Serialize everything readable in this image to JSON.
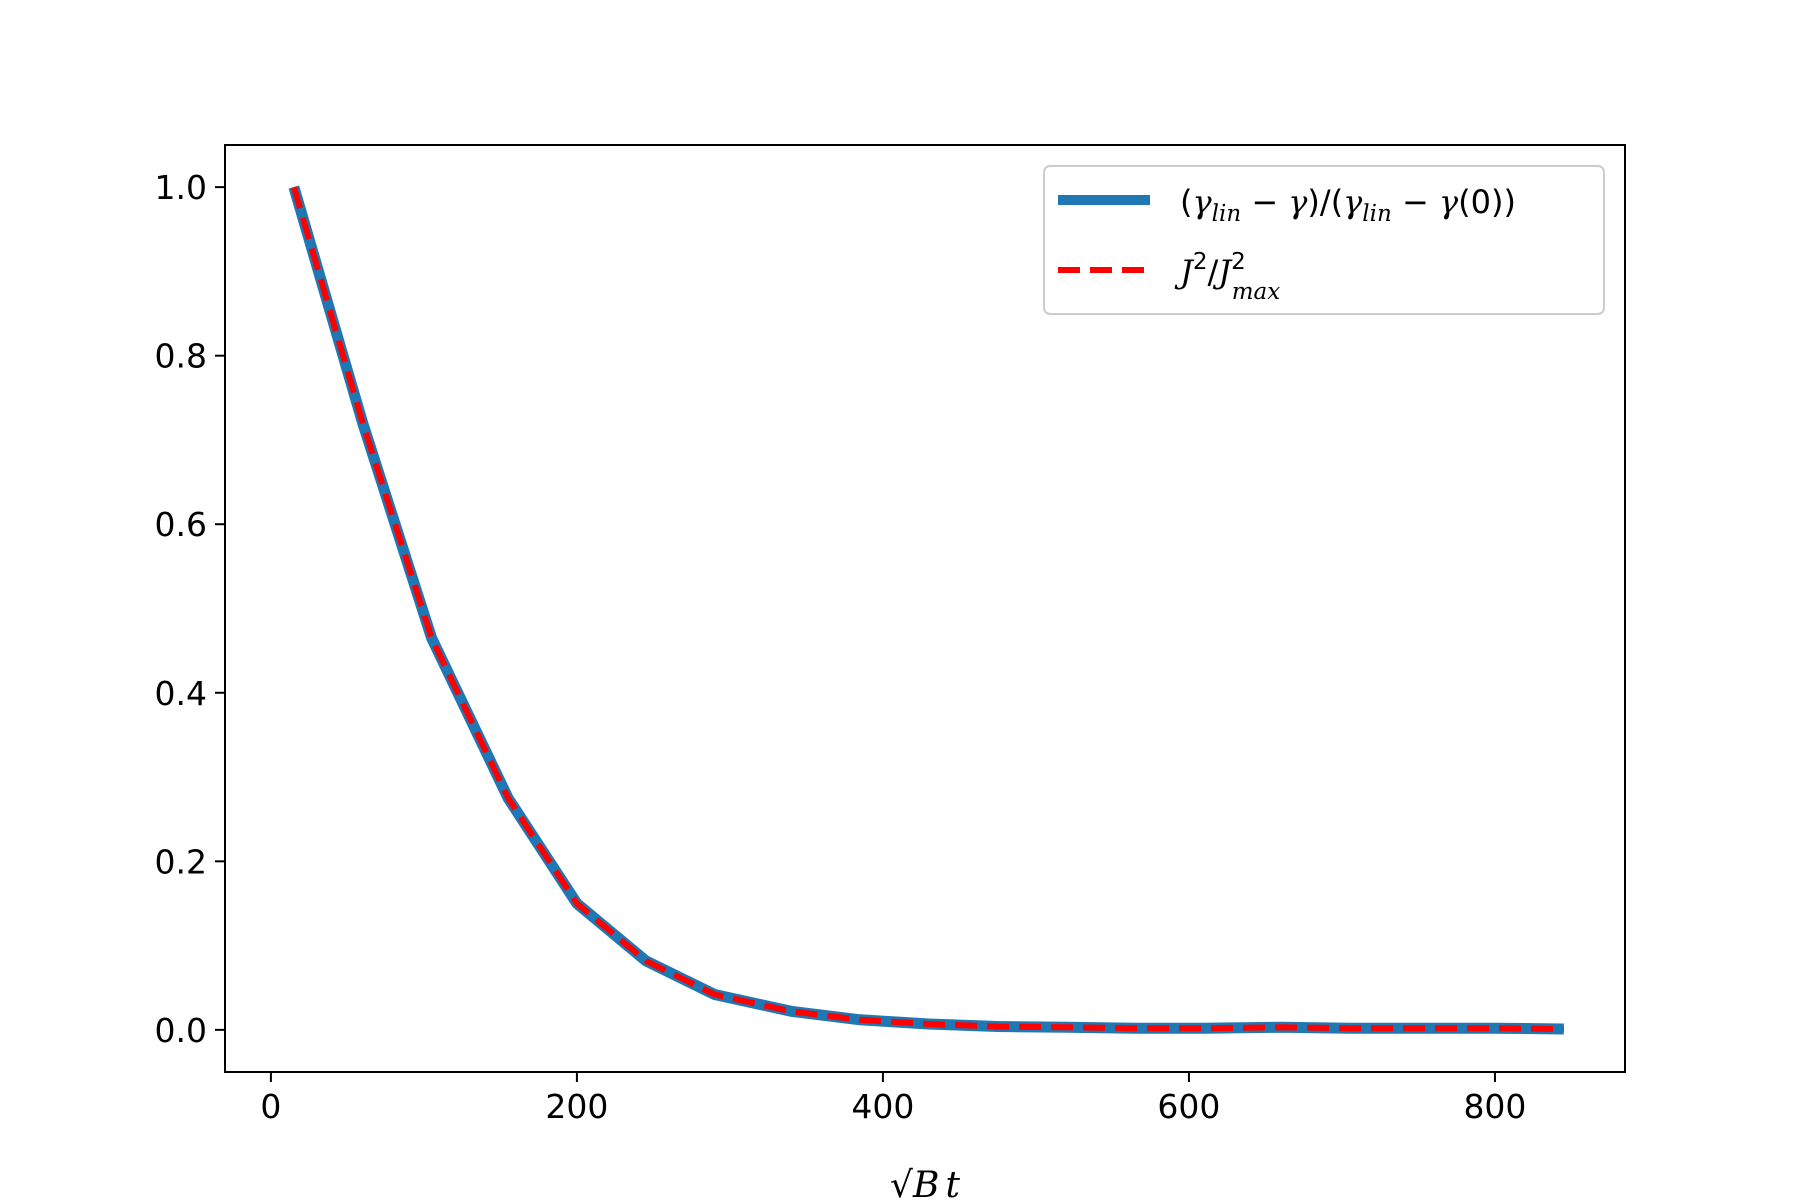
{
  "chart_data": {
    "type": "line",
    "xlabel": "√B t",
    "ylabel": "",
    "xlim": [
      -30,
      885
    ],
    "ylim": [
      -0.05,
      1.05
    ],
    "grid": false,
    "legend_position": "top-right",
    "xticks": [
      0,
      200,
      400,
      600,
      800
    ],
    "xtick_labels": [
      "0",
      "200",
      "400",
      "600",
      "800"
    ],
    "yticks": [
      0.0,
      0.2,
      0.4,
      0.6,
      0.8,
      1.0
    ],
    "ytick_labels": [
      "0.0",
      "0.2",
      "0.4",
      "0.6",
      "0.8",
      "1.0"
    ],
    "x": [
      15,
      60,
      105,
      155,
      200,
      245,
      290,
      340,
      385,
      430,
      475,
      520,
      565,
      610,
      660,
      705,
      750,
      800,
      845
    ],
    "series": [
      {
        "name": "(γlin − γ)/(γlin − γ(0))",
        "color": "#1f77b4",
        "style": "solid",
        "values": [
          1.0,
          0.72,
          0.465,
          0.275,
          0.15,
          0.082,
          0.042,
          0.022,
          0.012,
          0.007,
          0.004,
          0.003,
          0.002,
          0.002,
          0.003,
          0.002,
          0.002,
          0.002,
          0.001
        ]
      },
      {
        "name": "J²/J²max",
        "color": "#ff0000",
        "style": "dashed",
        "values": [
          1.0,
          0.72,
          0.465,
          0.275,
          0.15,
          0.082,
          0.042,
          0.022,
          0.012,
          0.007,
          0.004,
          0.003,
          0.002,
          0.002,
          0.003,
          0.002,
          0.002,
          0.002,
          0.001
        ]
      }
    ],
    "legend": {
      "entry1": {
        "p1": "(",
        "g1": "γ",
        "s1": "lin",
        "p2": " − ",
        "g2": "γ",
        "p3": ")/(",
        "g3": "γ",
        "s2": "lin",
        "p4": " − ",
        "g4": "γ",
        "p5": "(0))"
      },
      "entry2": {
        "j1": "J",
        "e1": "2",
        "slash": "/",
        "j2": "J",
        "e2": "2",
        "s1": "max"
      }
    },
    "xlabel_parts": {
      "root": "√",
      "b": "B",
      "t": "t"
    }
  }
}
